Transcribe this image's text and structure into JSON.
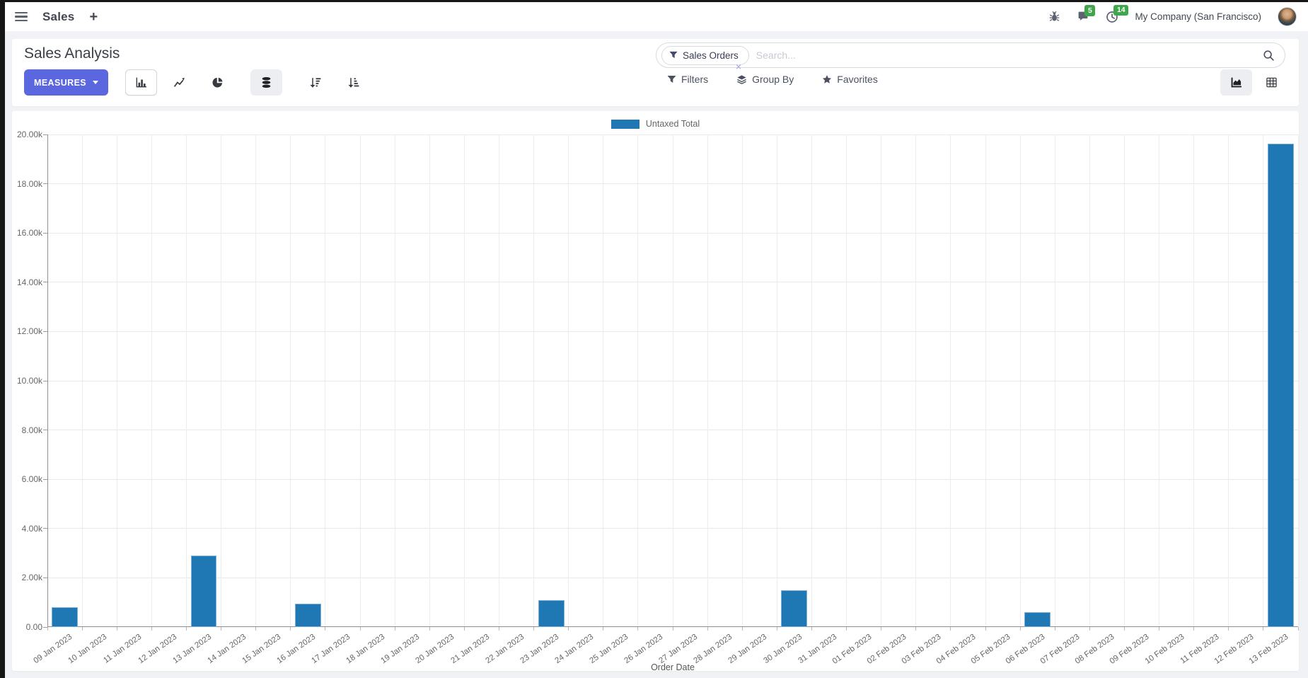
{
  "colors": {
    "primary_button": "#5b67df",
    "bar": "#1f77b4",
    "bar_border": "#7fb1d6",
    "badge_green": "#3fa64c",
    "grid": "#e9e9e9",
    "chart_text": "#666666"
  },
  "navbar": {
    "app_name": "Sales",
    "plus": "+",
    "messages_badge": "5",
    "activities_badge": "14",
    "company": "My Company (San Francisco)"
  },
  "control_panel": {
    "title": "Sales Analysis",
    "measures_label": "MEASURES",
    "search": {
      "facet_label": "Sales Orders",
      "facet_remove": "×",
      "placeholder": "Search..."
    },
    "filters_label": "Filters",
    "group_by_label": "Group By",
    "favorites_label": "Favorites"
  },
  "chart_data": {
    "type": "bar",
    "title": "",
    "legend_position": "top",
    "grid": true,
    "xlabel": "Order Date",
    "ylabel": "",
    "ylim": [
      0,
      20000
    ],
    "ytick_values": [
      0,
      2000,
      4000,
      6000,
      8000,
      10000,
      12000,
      14000,
      16000,
      18000,
      20000
    ],
    "ytick_labels": [
      "0.00",
      "2.00k",
      "4.00k",
      "6.00k",
      "8.00k",
      "10.00k",
      "12.00k",
      "14.00k",
      "16.00k",
      "18.00k",
      "20.00k"
    ],
    "categories": [
      "09 Jan 2023",
      "10 Jan 2023",
      "11 Jan 2023",
      "12 Jan 2023",
      "13 Jan 2023",
      "14 Jan 2023",
      "15 Jan 2023",
      "16 Jan 2023",
      "17 Jan 2023",
      "18 Jan 2023",
      "19 Jan 2023",
      "20 Jan 2023",
      "21 Jan 2023",
      "22 Jan 2023",
      "23 Jan 2023",
      "24 Jan 2023",
      "25 Jan 2023",
      "26 Jan 2023",
      "27 Jan 2023",
      "28 Jan 2023",
      "29 Jan 2023",
      "30 Jan 2023",
      "31 Jan 2023",
      "01 Feb 2023",
      "02 Feb 2023",
      "03 Feb 2023",
      "04 Feb 2023",
      "05 Feb 2023",
      "06 Feb 2023",
      "07 Feb 2023",
      "08 Feb 2023",
      "09 Feb 2023",
      "10 Feb 2023",
      "11 Feb 2023",
      "12 Feb 2023",
      "13 Feb 2023"
    ],
    "series": [
      {
        "name": "Untaxed Total",
        "color": "#1f77b4",
        "values": [
          800,
          0,
          0,
          0,
          2900,
          0,
          0,
          960,
          0,
          0,
          0,
          0,
          0,
          0,
          1090,
          0,
          0,
          0,
          0,
          0,
          0,
          1500,
          0,
          0,
          0,
          0,
          0,
          0,
          600,
          0,
          0,
          0,
          0,
          0,
          0,
          19630
        ]
      }
    ]
  }
}
